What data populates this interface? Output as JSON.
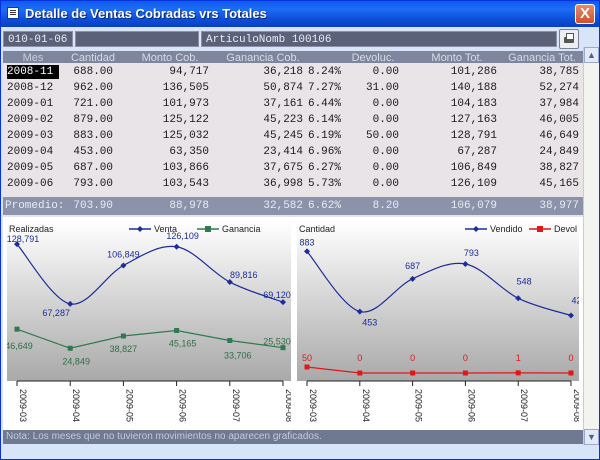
{
  "window": {
    "title": "Detalle de Ventas Cobradas vrs Totales",
    "close_label": "X"
  },
  "toolbar": {
    "date_field": "010-01-06",
    "middle_field": "",
    "article_field": "ArticuloNomb 100106"
  },
  "table": {
    "headers": [
      "Mes",
      "Cantidad",
      "Monto Cob.",
      "Ganancia Cob.",
      "",
      "Devoluc.",
      "Monto Tot.",
      "Ganancia Tot."
    ],
    "rows": [
      [
        "2008-11",
        "688.00",
        "94,717",
        "36,218",
        "8.24%",
        "0.00",
        "101,286",
        "38,785"
      ],
      [
        "2008-12",
        "962.00",
        "136,505",
        "50,874",
        "7.27%",
        "31.00",
        "140,188",
        "52,274"
      ],
      [
        "2009-01",
        "721.00",
        "101,973",
        "37,161",
        "6.44%",
        "0.00",
        "104,183",
        "37,984"
      ],
      [
        "2009-02",
        "879.00",
        "125,122",
        "45,223",
        "6.14%",
        "0.00",
        "127,163",
        "46,005"
      ],
      [
        "2009-03",
        "883.00",
        "125,032",
        "45,245",
        "6.19%",
        "50.00",
        "128,791",
        "46,649"
      ],
      [
        "2009-04",
        "453.00",
        "63,350",
        "23,414",
        "6.96%",
        "0.00",
        "67,287",
        "24,849"
      ],
      [
        "2009-05",
        "687.00",
        "103,866",
        "37,675",
        "6.27%",
        "0.00",
        "106,849",
        "38,827"
      ],
      [
        "2009-06",
        "793.00",
        "103,543",
        "36,998",
        "5.73%",
        "0.00",
        "126,109",
        "45,165"
      ]
    ],
    "average": [
      "Promedio:",
      "703.90",
      "88,978",
      "32,582",
      "6.62%",
      "8.20",
      "106,079",
      "38,977"
    ]
  },
  "chart_data": [
    {
      "type": "line",
      "title": "Realizadas",
      "categories": [
        "2009-03",
        "2009-04",
        "2009-05",
        "2009-06",
        "2009-07",
        "2009-08"
      ],
      "series": [
        {
          "name": "Venta",
          "values": [
            128791,
            67287,
            106849,
            126109,
            89816,
            69120
          ],
          "labels": [
            "128,791",
            "67,287",
            "106,849",
            "126,109",
            "89,816",
            "69,120"
          ],
          "color": "#1c2c9c"
        },
        {
          "name": "Ganancia",
          "values": [
            46649,
            24849,
            38827,
            45165,
            33706,
            25530
          ],
          "labels": [
            "46,649",
            "24,849",
            "38,827",
            "45,165",
            "33,706",
            "25,530"
          ],
          "color": "#2f7a4f"
        }
      ],
      "legend": "top-right",
      "grid": false
    },
    {
      "type": "line",
      "title": "Cantidad",
      "categories": [
        "2009-03",
        "2009-04",
        "2009-05",
        "2009-06",
        "2009-07",
        "2009-08"
      ],
      "series": [
        {
          "name": "Vendido",
          "values": [
            883,
            453,
            687,
            793,
            548,
            425
          ],
          "labels": [
            "883",
            "453",
            "687",
            "793",
            "548",
            "425"
          ],
          "color": "#1c2c9c"
        },
        {
          "name": "Devol",
          "values": [
            50,
            0,
            0,
            0,
            1,
            0
          ],
          "labels": [
            "50",
            "0",
            "0",
            "0",
            "1",
            "0"
          ],
          "color": "#e01818"
        }
      ],
      "legend": "top-right",
      "grid": false
    }
  ],
  "note": "Nota: Los meses que no tuvieron movimientos no aparecen graficados."
}
